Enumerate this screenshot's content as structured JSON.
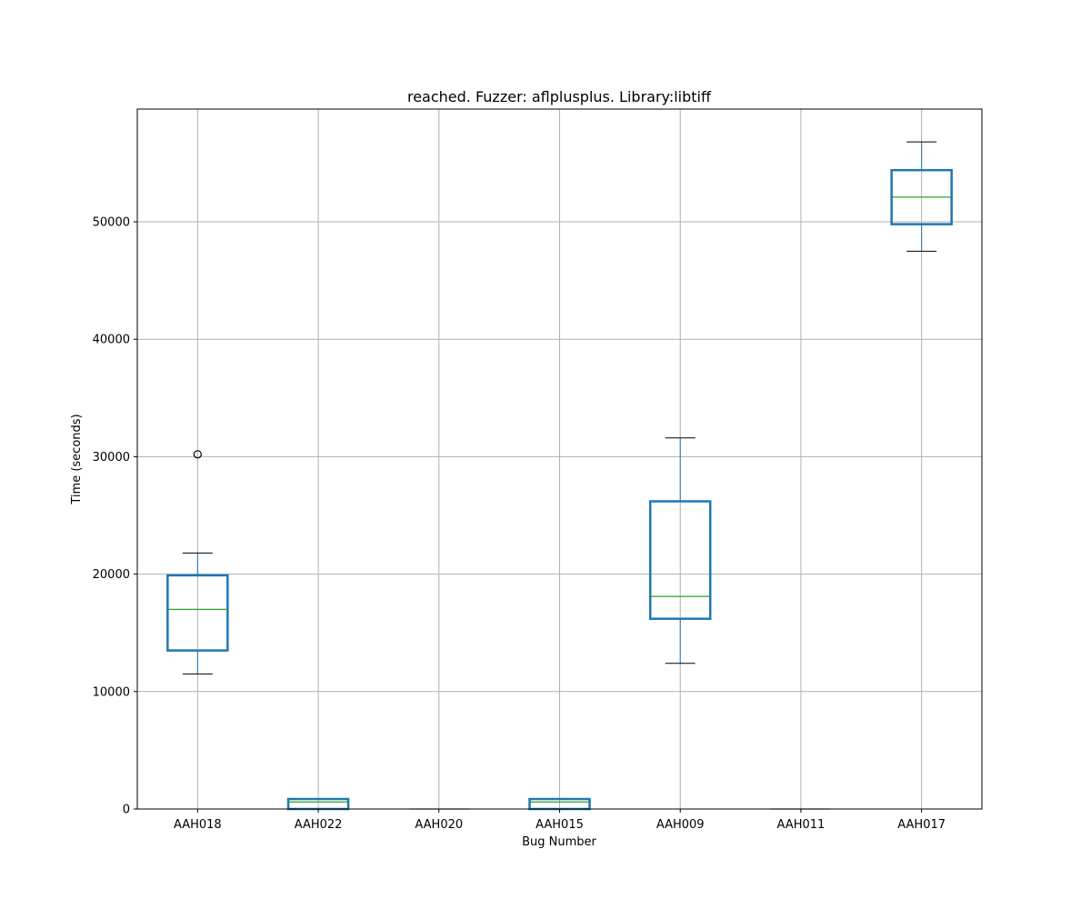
{
  "chart_data": {
    "type": "box",
    "title": "reached. Fuzzer: aflplusplus. Library:libtiff",
    "xlabel": "Bug Number",
    "ylabel": "Time (seconds)",
    "ylim": [
      0,
      59600
    ],
    "yticks": [
      0,
      10000,
      20000,
      30000,
      40000,
      50000
    ],
    "grid": true,
    "categories": [
      "AAH018",
      "AAH022",
      "AAH020",
      "AAH015",
      "AAH009",
      "AAH011",
      "AAH017"
    ],
    "boxes": [
      {
        "label": "AAH018",
        "whisker_low": 11500,
        "q1": 13500,
        "median": 17000,
        "q3": 19900,
        "whisker_high": 21800,
        "outliers": [
          30200
        ]
      },
      {
        "label": "AAH022",
        "whisker_low": 0,
        "q1": 0,
        "median": 600,
        "q3": 850,
        "whisker_high": 850,
        "outliers": []
      },
      {
        "label": "AAH020",
        "whisker_low": 0,
        "q1": 0,
        "median": 0,
        "q3": 0,
        "whisker_high": 0,
        "outliers": []
      },
      {
        "label": "AAH015",
        "whisker_low": 0,
        "q1": 0,
        "median": 600,
        "q3": 850,
        "whisker_high": 850,
        "outliers": []
      },
      {
        "label": "AAH009",
        "whisker_low": 12400,
        "q1": 16200,
        "median": 18100,
        "q3": 26200,
        "whisker_high": 31600,
        "outliers": []
      },
      {
        "label": "AAH011",
        "whisker_low": 0,
        "q1": 0,
        "median": 0,
        "q3": 0,
        "whisker_high": 0,
        "outliers": []
      },
      {
        "label": "AAH017",
        "whisker_low": 47500,
        "q1": 49800,
        "median": 52100,
        "q3": 54400,
        "whisker_high": 56800,
        "outliers": []
      }
    ],
    "colors": {
      "box": "#1f77b4",
      "median": "#2ca02c",
      "whisker_cap": "#000000",
      "grid": "#b0b0b0",
      "outlier": "#000000"
    }
  }
}
